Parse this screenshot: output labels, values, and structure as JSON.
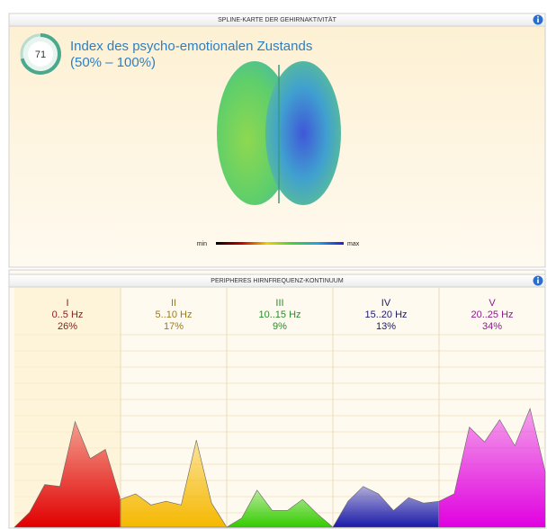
{
  "top_panel": {
    "header": "SPLINE-KARTE DER GEHIRNAKTIVITÄT",
    "gauge": {
      "value": 71,
      "max": 100
    },
    "title": "Index des psycho-emotionalen Zustands",
    "subtitle": "(50% – 100%)",
    "scale": {
      "min_label": "min",
      "max_label": "max"
    }
  },
  "bottom_panel": {
    "header": "PERIPHERES HIRNFREQUENZ-KONTINUUM",
    "ylim": [
      0,
      100
    ],
    "bands": [
      {
        "numeral": "I",
        "range": "0..5 Hz",
        "percent": "26%",
        "color": "#e00000",
        "text_color": "#8b1a1a",
        "values": [
          0,
          8,
          23,
          22,
          57,
          37,
          42,
          15
        ]
      },
      {
        "numeral": "II",
        "range": "5..10 Hz",
        "percent": "17%",
        "color": "#f5b800",
        "text_color": "#9a7a1e",
        "values": [
          15,
          18,
          12,
          14,
          12,
          47,
          13,
          0
        ]
      },
      {
        "numeral": "III",
        "range": "10..15 Hz",
        "percent": "9%",
        "color": "#33cc00",
        "text_color": "#2a8a2a",
        "values": [
          0,
          5,
          20,
          9,
          9,
          15,
          7,
          0
        ]
      },
      {
        "numeral": "IV",
        "range": "15..20 Hz",
        "percent": "13%",
        "color": "#1a1aaa",
        "text_color": "#1a1a6a",
        "values": [
          0,
          14,
          22,
          18,
          9,
          16,
          13,
          14
        ]
      },
      {
        "numeral": "V",
        "range": "20..25 Hz",
        "percent": "34%",
        "color": "#e000e0",
        "text_color": "#8a1a8a",
        "values": [
          14,
          18,
          54,
          46,
          58,
          44,
          64,
          30
        ]
      }
    ]
  }
}
